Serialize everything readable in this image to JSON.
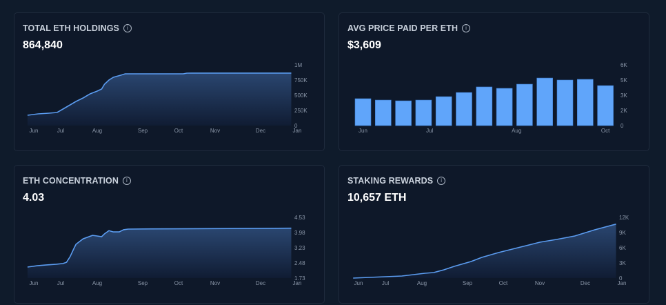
{
  "colors": {
    "line": "#5b9cf0",
    "bar": "#60a5fa",
    "fill_top": "#2a4670",
    "fill_bottom": "#101c33"
  },
  "cards": [
    {
      "title": "TOTAL ETH HOLDINGS",
      "value": "864,840",
      "info_icon": "info-icon"
    },
    {
      "title": "AVG PRICE PAID PER ETH",
      "value": "$3,609",
      "info_icon": "info-icon"
    },
    {
      "title": "ETH CONCENTRATION",
      "value": "4.03",
      "info_icon": "info-icon"
    },
    {
      "title": "STAKING REWARDS",
      "value": "10,657 ETH",
      "info_icon": "info-icon"
    }
  ],
  "chart_data": [
    {
      "type": "area",
      "xticks": [
        "Jun",
        "Jul",
        "Aug",
        "Sep",
        "Oct",
        "Nov",
        "Dec",
        "Jan"
      ],
      "yticks": [
        "0",
        "250K",
        "500K",
        "750K",
        "1M"
      ],
      "ylim": [
        0,
        1000000
      ],
      "points": [
        [
          "05-25",
          170000
        ],
        [
          "06-06",
          193000
        ],
        [
          "06-18",
          205000
        ],
        [
          "06-27",
          216000
        ],
        [
          "07-03",
          273000
        ],
        [
          "07-09",
          341000
        ],
        [
          "07-14",
          398000
        ],
        [
          "07-20",
          455000
        ],
        [
          "07-26",
          523000
        ],
        [
          "08-01",
          568000
        ],
        [
          "08-04",
          602000
        ],
        [
          "08-06",
          682000
        ],
        [
          "08-09",
          750000
        ],
        [
          "08-12",
          795000
        ],
        [
          "08-17",
          830000
        ],
        [
          "08-20",
          852000
        ],
        [
          "08-24",
          852000
        ],
        [
          "10-05",
          852000
        ],
        [
          "10-08",
          864000
        ],
        [
          "10-12",
          865000
        ],
        [
          "12-27",
          865000
        ]
      ]
    },
    {
      "type": "bar",
      "xticks": [
        {
          "label": "Jun",
          "at": 0
        },
        {
          "label": "Jul",
          "at": 3.3
        },
        {
          "label": "Aug",
          "at": 7.6
        },
        {
          "label": "Oct",
          "at": 12
        }
      ],
      "yticks": [
        "0",
        "2K",
        "3K",
        "5K",
        "6K"
      ],
      "ylim": [
        0,
        6000
      ],
      "values": [
        2660,
        2520,
        2450,
        2520,
        2860,
        3270,
        3820,
        3680,
        4090,
        4700,
        4500,
        4570,
        3950
      ]
    },
    {
      "type": "area",
      "xticks": [
        "Jun",
        "Jul",
        "Aug",
        "Sep",
        "Oct",
        "Nov",
        "Dec",
        "Jan"
      ],
      "yticks": [
        "1.73",
        "2.48",
        "3.23",
        "3.98",
        "4.53"
      ],
      "ylim": [
        1.73,
        4.53
      ],
      "points": [
        [
          "05-25",
          2.24
        ],
        [
          "06-05",
          2.3
        ],
        [
          "06-14",
          2.33
        ],
        [
          "06-26",
          2.37
        ],
        [
          "07-03",
          2.4
        ],
        [
          "07-06",
          2.46
        ],
        [
          "07-09",
          2.72
        ],
        [
          "07-12",
          3.07
        ],
        [
          "07-14",
          3.29
        ],
        [
          "07-20",
          3.54
        ],
        [
          "07-28",
          3.7
        ],
        [
          "08-01",
          3.67
        ],
        [
          "08-04",
          3.64
        ],
        [
          "08-06",
          3.77
        ],
        [
          "08-09",
          3.92
        ],
        [
          "08-12",
          3.86
        ],
        [
          "08-16",
          3.86
        ],
        [
          "08-19",
          3.96
        ],
        [
          "08-22",
          3.99
        ],
        [
          "09-08",
          4.0
        ],
        [
          "12-27",
          4.03
        ]
      ]
    },
    {
      "type": "area",
      "xticks": [
        "Jun",
        "Jul",
        "Aug",
        "Sep",
        "Oct",
        "Nov",
        "Dec",
        "Jan"
      ],
      "yticks": [
        "0",
        "3K",
        "6K",
        "9K",
        "12K"
      ],
      "ylim": [
        0,
        12000
      ],
      "points": [
        [
          "05-26",
          0
        ],
        [
          "07-01",
          270
        ],
        [
          "07-15",
          410
        ],
        [
          "08-03",
          950
        ],
        [
          "08-09",
          1090
        ],
        [
          "08-16",
          1640
        ],
        [
          "08-23",
          2320
        ],
        [
          "09-04",
          3270
        ],
        [
          "09-13",
          4090
        ],
        [
          "09-27",
          5050
        ],
        [
          "10-18",
          6270
        ],
        [
          "11-01",
          7090
        ],
        [
          "11-12",
          7640
        ],
        [
          "11-24",
          8320
        ],
        [
          "12-09",
          9550
        ],
        [
          "12-27",
          10657
        ]
      ]
    }
  ]
}
